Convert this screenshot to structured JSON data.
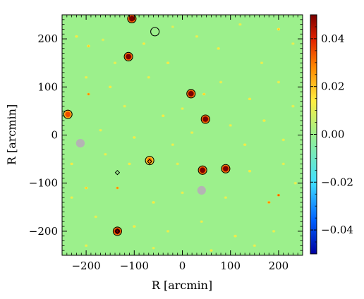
{
  "chart_data": {
    "type": "heatmap",
    "xlabel": "R [arcmin]",
    "ylabel": "R [arcmin]",
    "xlim": [
      -250,
      250
    ],
    "ylim": [
      -250,
      250
    ],
    "xticks": [
      {
        "value": -200,
        "label": "−200"
      },
      {
        "value": -100,
        "label": "−100"
      },
      {
        "value": 0,
        "label": "0"
      },
      {
        "value": 100,
        "label": "100"
      },
      {
        "value": 200,
        "label": "200"
      }
    ],
    "yticks": [
      {
        "value": -200,
        "label": "−200"
      },
      {
        "value": -100,
        "label": "−100"
      },
      {
        "value": 0,
        "label": "0"
      },
      {
        "value": 100,
        "label": "100"
      },
      {
        "value": 200,
        "label": "200"
      }
    ],
    "background_value": 0.0,
    "colorbar": {
      "range": [
        -0.05,
        0.05
      ],
      "ticks": [
        {
          "value": 0.04,
          "label": "0.04"
        },
        {
          "value": 0.02,
          "label": "0.02"
        },
        {
          "value": 0.0,
          "label": "0.00"
        },
        {
          "value": -0.02,
          "label": "−0.02"
        },
        {
          "value": -0.04,
          "label": "−0.04"
        }
      ],
      "colors": [
        "#0000a0",
        "#0060ff",
        "#40e0ff",
        "#9cf08c",
        "#ffee40",
        "#ff8800",
        "#e02000",
        "#7a0000"
      ]
    },
    "sources": [
      {
        "x": -105,
        "y": 242,
        "value": 0.05,
        "circled": true
      },
      {
        "x": -57,
        "y": 215,
        "value": 0.0,
        "circled": true
      },
      {
        "x": -112,
        "y": 163,
        "value": 0.05,
        "circled": true
      },
      {
        "x": 18,
        "y": 86,
        "value": 0.05,
        "circled": true
      },
      {
        "x": -238,
        "y": 43,
        "value": 0.035,
        "circled": true
      },
      {
        "x": 48,
        "y": 33,
        "value": 0.05,
        "circled": true
      },
      {
        "x": -68,
        "y": -53,
        "value": 0.03,
        "circled": true
      },
      {
        "x": 42,
        "y": -73,
        "value": 0.05,
        "circled": true
      },
      {
        "x": 90,
        "y": -70,
        "value": 0.05,
        "circled": true
      },
      {
        "x": -135,
        "y": -200,
        "value": 0.05,
        "circled": true
      }
    ],
    "masked_regions": [
      {
        "x": -212,
        "y": -17,
        "r": 9
      },
      {
        "x": 40,
        "y": -115,
        "r": 9
      }
    ],
    "diamond_markers": [
      {
        "x": -135,
        "y": -78
      },
      {
        "x": -68,
        "y": -55
      },
      {
        "x": -135,
        "y": -200
      }
    ],
    "faint_spots": [
      {
        "x": -220,
        "y": 205,
        "v": 0.015
      },
      {
        "x": -195,
        "y": 185,
        "v": 0.02
      },
      {
        "x": -165,
        "y": 198,
        "v": 0.01
      },
      {
        "x": -140,
        "y": 150,
        "v": 0.012
      },
      {
        "x": -80,
        "y": 190,
        "v": 0.015
      },
      {
        "x": -20,
        "y": 225,
        "v": 0.01
      },
      {
        "x": 30,
        "y": 205,
        "v": 0.012
      },
      {
        "x": 75,
        "y": 180,
        "v": 0.015
      },
      {
        "x": 120,
        "y": 230,
        "v": 0.012
      },
      {
        "x": 165,
        "y": 150,
        "v": 0.012
      },
      {
        "x": 200,
        "y": 220,
        "v": 0.02
      },
      {
        "x": 230,
        "y": 190,
        "v": 0.012
      },
      {
        "x": -200,
        "y": 120,
        "v": 0.012
      },
      {
        "x": -150,
        "y": 100,
        "v": 0.015
      },
      {
        "x": -70,
        "y": 120,
        "v": 0.012
      },
      {
        "x": -30,
        "y": 150,
        "v": 0.015
      },
      {
        "x": 80,
        "y": 110,
        "v": 0.012
      },
      {
        "x": 140,
        "y": 75,
        "v": 0.015
      },
      {
        "x": 200,
        "y": 110,
        "v": 0.012
      },
      {
        "x": 230,
        "y": 60,
        "v": 0.012
      },
      {
        "x": -195,
        "y": 85,
        "v": 0.03
      },
      {
        "x": -120,
        "y": 60,
        "v": 0.012
      },
      {
        "x": -40,
        "y": 40,
        "v": 0.015
      },
      {
        "x": 0,
        "y": 55,
        "v": 0.012
      },
      {
        "x": 45,
        "y": 85,
        "v": 0.02
      },
      {
        "x": 100,
        "y": 20,
        "v": 0.012
      },
      {
        "x": 170,
        "y": 30,
        "v": 0.015
      },
      {
        "x": -170,
        "y": 10,
        "v": 0.012
      },
      {
        "x": -100,
        "y": -5,
        "v": 0.015
      },
      {
        "x": -20,
        "y": -20,
        "v": 0.012
      },
      {
        "x": 20,
        "y": 5,
        "v": 0.012
      },
      {
        "x": 130,
        "y": -20,
        "v": 0.015
      },
      {
        "x": 210,
        "y": -10,
        "v": 0.012
      },
      {
        "x": -230,
        "y": -60,
        "v": 0.015
      },
      {
        "x": -160,
        "y": -40,
        "v": 0.012
      },
      {
        "x": -110,
        "y": -60,
        "v": 0.015
      },
      {
        "x": -10,
        "y": -60,
        "v": 0.012
      },
      {
        "x": 140,
        "y": -75,
        "v": 0.015
      },
      {
        "x": 210,
        "y": -60,
        "v": 0.012
      },
      {
        "x": -230,
        "y": -130,
        "v": 0.012
      },
      {
        "x": -200,
        "y": -110,
        "v": 0.02
      },
      {
        "x": -135,
        "y": -110,
        "v": 0.03
      },
      {
        "x": -60,
        "y": -140,
        "v": 0.015
      },
      {
        "x": 0,
        "y": -120,
        "v": 0.012
      },
      {
        "x": 90,
        "y": -130,
        "v": 0.012
      },
      {
        "x": 180,
        "y": -140,
        "v": 0.03
      },
      {
        "x": 200,
        "y": -125,
        "v": 0.035
      },
      {
        "x": 235,
        "y": -100,
        "v": 0.012
      },
      {
        "x": -180,
        "y": -170,
        "v": 0.012
      },
      {
        "x": -100,
        "y": -190,
        "v": 0.015
      },
      {
        "x": -30,
        "y": -200,
        "v": 0.012
      },
      {
        "x": 40,
        "y": -180,
        "v": 0.012
      },
      {
        "x": 110,
        "y": -210,
        "v": 0.015
      },
      {
        "x": 190,
        "y": -200,
        "v": 0.012
      },
      {
        "x": -200,
        "y": -230,
        "v": 0.012
      },
      {
        "x": -60,
        "y": -235,
        "v": 0.012
      },
      {
        "x": 60,
        "y": -240,
        "v": 0.015
      },
      {
        "x": 150,
        "y": -230,
        "v": 0.012
      }
    ]
  }
}
